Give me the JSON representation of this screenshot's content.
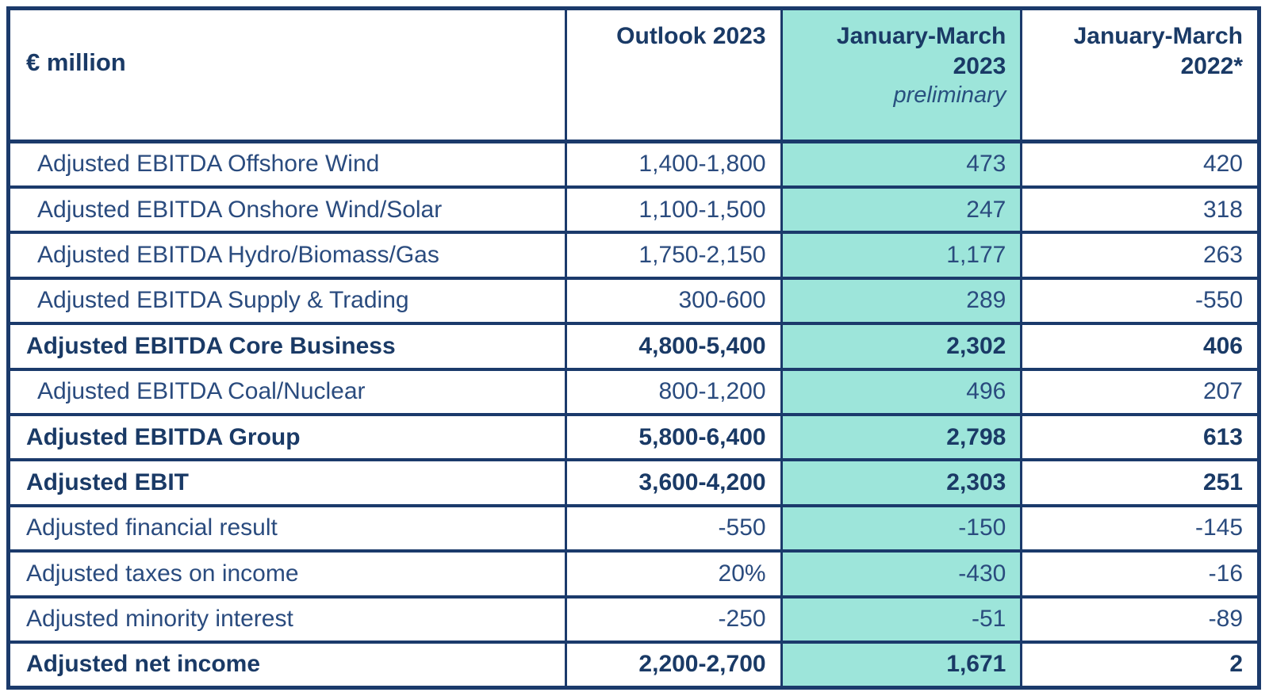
{
  "table": {
    "unit_label": "€ million",
    "columns": [
      {
        "label": "Outlook 2023",
        "highlighted": false
      },
      {
        "label": "January-March 2023",
        "line1": "January-March",
        "line2": "2023",
        "note": "preliminary",
        "highlighted": true
      },
      {
        "label": "January-March 2022*",
        "line1": "January-March",
        "line2": "2022*",
        "highlighted": false
      }
    ],
    "rows": [
      {
        "label": "Adjusted EBITDA Offshore Wind",
        "outlook": "1,400-1,800",
        "jan_mar_2023": "473",
        "jan_mar_2022": "420",
        "bold": false,
        "indent": true
      },
      {
        "label": "Adjusted EBITDA Onshore Wind/Solar",
        "outlook": "1,100-1,500",
        "jan_mar_2023": "247",
        "jan_mar_2022": "318",
        "bold": false,
        "indent": true
      },
      {
        "label": "Adjusted EBITDA Hydro/Biomass/Gas",
        "outlook": "1,750-2,150",
        "jan_mar_2023": "1,177",
        "jan_mar_2022": "263",
        "bold": false,
        "indent": true
      },
      {
        "label": "Adjusted EBITDA Supply & Trading",
        "outlook": "300-600",
        "jan_mar_2023": "289",
        "jan_mar_2022": "-550",
        "bold": false,
        "indent": true
      },
      {
        "label": "Adjusted EBITDA Core Business",
        "outlook": "4,800-5,400",
        "jan_mar_2023": "2,302",
        "jan_mar_2022": "406",
        "bold": true,
        "indent": false
      },
      {
        "label": "Adjusted EBITDA Coal/Nuclear",
        "outlook": "800-1,200",
        "jan_mar_2023": "496",
        "jan_mar_2022": "207",
        "bold": false,
        "indent": true
      },
      {
        "label": "Adjusted EBITDA Group",
        "outlook": "5,800-6,400",
        "jan_mar_2023": "2,798",
        "jan_mar_2022": "613",
        "bold": true,
        "indent": false
      },
      {
        "label": "Adjusted EBIT",
        "outlook": "3,600-4,200",
        "jan_mar_2023": "2,303",
        "jan_mar_2022": "251",
        "bold": true,
        "indent": false
      },
      {
        "label": "Adjusted financial result",
        "outlook": "-550",
        "jan_mar_2023": "-150",
        "jan_mar_2022": "-145",
        "bold": false,
        "indent": false
      },
      {
        "label": "Adjusted taxes on income",
        "outlook": "20%",
        "jan_mar_2023": "-430",
        "jan_mar_2022": "-16",
        "bold": false,
        "indent": false
      },
      {
        "label": "Adjusted minority interest",
        "outlook": "-250",
        "jan_mar_2023": "-51",
        "jan_mar_2022": "-89",
        "bold": false,
        "indent": false
      },
      {
        "label": "Adjusted net income",
        "outlook": "2,200-2,700",
        "jan_mar_2023": "1,671",
        "jan_mar_2022": "2",
        "bold": true,
        "indent": false
      }
    ]
  },
  "colors": {
    "border": "#1b3a6b",
    "highlight": "#9de5da",
    "text_regular": "#2a4b7e",
    "text_bold": "#1a3a66",
    "background": "#ffffff"
  }
}
